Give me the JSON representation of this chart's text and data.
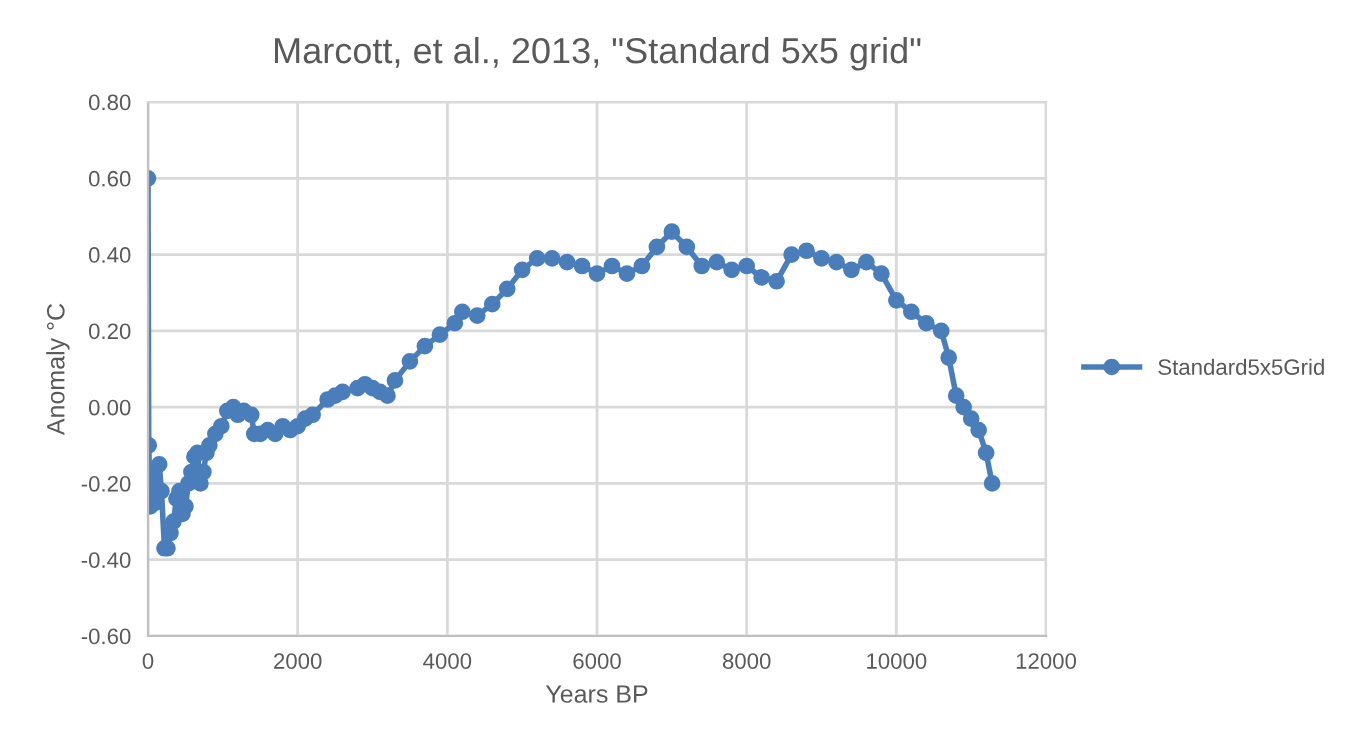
{
  "chart_data": {
    "type": "line",
    "title": "Marcott, et al., 2013, \"Standard 5x5 grid\"",
    "xlabel": "Years BP",
    "ylabel": "Anomaly °C",
    "x": [
      0,
      10,
      30,
      60,
      100,
      120,
      150,
      180,
      220,
      260,
      300,
      340,
      380,
      420,
      460,
      500,
      540,
      580,
      620,
      660,
      700,
      740,
      780,
      820,
      900,
      980,
      1060,
      1140,
      1200,
      1280,
      1380,
      1420,
      1500,
      1600,
      1700,
      1800,
      1900,
      2000,
      2100,
      2200,
      2400,
      2500,
      2600,
      2800,
      2900,
      3000,
      3100,
      3200,
      3300,
      3500,
      3700,
      3900,
      4100,
      4200,
      4400,
      4600,
      4800,
      5000,
      5200,
      5400,
      5600,
      5800,
      6000,
      6200,
      6400,
      6600,
      6800,
      7000,
      7200,
      7400,
      7600,
      7800,
      8000,
      8200,
      8400,
      8600,
      8800,
      9000,
      9200,
      9400,
      9600,
      9800,
      10000,
      10200,
      10400,
      10600,
      10700,
      10800,
      10900,
      11000,
      11100,
      11200,
      11280
    ],
    "series": [
      {
        "name": "Standard5x5Grid",
        "color": "#4a7ebb",
        "values": [
          0.6,
          -0.1,
          -0.26,
          -0.17,
          -0.25,
          -0.23,
          -0.15,
          -0.22,
          -0.37,
          -0.37,
          -0.33,
          -0.3,
          -0.24,
          -0.22,
          -0.28,
          -0.26,
          -0.2,
          -0.17,
          -0.13,
          -0.12,
          -0.2,
          -0.17,
          -0.12,
          -0.1,
          -0.07,
          -0.05,
          -0.01,
          0.0,
          -0.02,
          -0.01,
          -0.02,
          -0.07,
          -0.07,
          -0.06,
          -0.07,
          -0.05,
          -0.06,
          -0.05,
          -0.03,
          -0.02,
          0.02,
          0.03,
          0.04,
          0.05,
          0.06,
          0.05,
          0.04,
          0.03,
          0.07,
          0.12,
          0.16,
          0.19,
          0.22,
          0.25,
          0.24,
          0.27,
          0.31,
          0.36,
          0.39,
          0.39,
          0.38,
          0.37,
          0.35,
          0.37,
          0.35,
          0.37,
          0.42,
          0.46,
          0.42,
          0.37,
          0.38,
          0.36,
          0.37,
          0.34,
          0.33,
          0.4,
          0.41,
          0.39,
          0.38,
          0.36,
          0.38,
          0.35,
          0.28,
          0.25,
          0.22,
          0.2,
          0.13,
          0.03,
          0.0,
          -0.03,
          -0.06,
          -0.12,
          -0.2
        ]
      }
    ],
    "xlim": [
      0,
      12000
    ],
    "xticks": [
      0,
      2000,
      4000,
      6000,
      8000,
      10000,
      12000
    ],
    "ylim": [
      -0.6,
      0.8
    ],
    "yticks": [
      {
        "value": -0.6,
        "label": "-0.60"
      },
      {
        "value": -0.4,
        "label": "-0.40"
      },
      {
        "value": -0.2,
        "label": "-0.20"
      },
      {
        "value": 0,
        "label": "0.00"
      },
      {
        "value": 0.2,
        "label": "0.20"
      },
      {
        "value": 0.4,
        "label": "0.40"
      },
      {
        "value": 0.6,
        "label": "0.60"
      },
      {
        "value": 0.8,
        "label": "0.80"
      }
    ],
    "grid": true,
    "legend": "right",
    "marker": "circle",
    "line_style": "solid"
  }
}
